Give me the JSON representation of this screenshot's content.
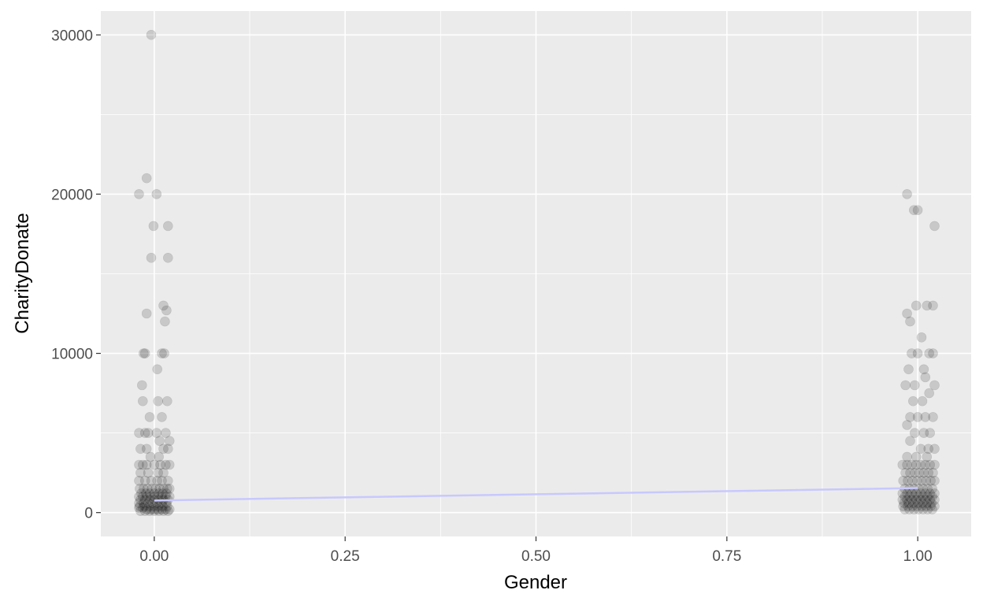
{
  "chart_data": {
    "type": "scatter",
    "xlabel": "Gender",
    "ylabel": "CharityDonate",
    "xlim": [
      -0.07,
      1.07
    ],
    "ylim": [
      -1500,
      31500
    ],
    "x_ticks": [
      0,
      0.25,
      0.5,
      0.75,
      1
    ],
    "x_tick_labels": [
      "0.00",
      "0.25",
      "0.50",
      "0.75",
      "1.00"
    ],
    "y_ticks": [
      0,
      10000,
      20000,
      30000
    ],
    "y_tick_labels": [
      "0",
      "10000",
      "20000",
      "30000"
    ],
    "grid": true,
    "legend": "none",
    "colors": {
      "panel": "#ebebeb",
      "grid_major": "#ffffff",
      "point": "#000000",
      "regression_line": "#c8c8ff"
    },
    "point_alpha": 0.15,
    "series": [
      {
        "x": [
          -0.004,
          -0.01,
          -0.02,
          0.003,
          -0.001,
          0.018,
          -0.004,
          0.018,
          0.012,
          0.016,
          -0.01,
          0.014,
          -0.014,
          -0.012,
          0.01,
          0.013,
          0.004,
          -0.016,
          -0.015,
          0.017,
          0.005,
          -0.006,
          0.01,
          -0.02,
          -0.012,
          -0.008,
          0.015,
          0.003,
          0.007,
          0.02,
          -0.018,
          -0.01,
          0.012,
          0.018,
          -0.005,
          0.006,
          -0.02,
          -0.015,
          -0.01,
          0.0,
          0.008,
          0.015,
          0.02,
          -0.018,
          -0.008,
          0.005,
          0.012,
          -0.02,
          -0.012,
          -0.004,
          0.004,
          0.01,
          0.018,
          -0.019,
          -0.014,
          -0.009,
          -0.003,
          0.002,
          0.007,
          0.012,
          0.017,
          0.02,
          -0.017,
          -0.011,
          -0.006,
          0.0,
          0.006,
          0.011,
          0.016,
          -0.02,
          -0.015,
          -0.01,
          -0.005,
          0.0,
          0.005,
          0.01,
          0.015,
          0.02,
          -0.018,
          -0.012,
          -0.006,
          0.0,
          0.006,
          0.012,
          0.018,
          -0.02,
          -0.014,
          -0.008,
          -0.002,
          0.004,
          0.01,
          0.016,
          -0.019,
          -0.013,
          -0.007,
          -0.001,
          0.005,
          0.011,
          0.017,
          -0.02,
          -0.015,
          -0.01,
          -0.005,
          0.0,
          0.005,
          0.01,
          0.015,
          0.02,
          -0.018,
          -0.012,
          -0.006,
          0.0,
          0.006,
          0.012,
          0.018
        ],
        "y": [
          30000,
          21000,
          20000,
          20000,
          18000,
          18000,
          16000,
          16000,
          13000,
          12700,
          12500,
          12000,
          10000,
          10000,
          10000,
          10000,
          9000,
          8000,
          7000,
          7000,
          7000,
          6000,
          6000,
          5000,
          5000,
          5000,
          5000,
          5000,
          4500,
          4500,
          4000,
          4000,
          4000,
          4000,
          3500,
          3500,
          3000,
          3000,
          3000,
          3000,
          3000,
          3000,
          3000,
          2500,
          2500,
          2500,
          2500,
          2000,
          2000,
          2000,
          2000,
          2000,
          2000,
          1500,
          1500,
          1500,
          1500,
          1500,
          1500,
          1500,
          1500,
          1500,
          1200,
          1200,
          1200,
          1200,
          1200,
          1200,
          1200,
          1000,
          1000,
          1000,
          1000,
          1000,
          1000,
          1000,
          1000,
          1000,
          800,
          800,
          800,
          800,
          800,
          800,
          800,
          600,
          600,
          600,
          600,
          600,
          600,
          600,
          400,
          400,
          400,
          400,
          400,
          400,
          400,
          300,
          300,
          200,
          200,
          200,
          200,
          200,
          200,
          200,
          100,
          100,
          100,
          100,
          100,
          100,
          100
        ]
      },
      {
        "x": [
          0.986,
          0.995,
          1.0,
          1.022,
          0.986,
          1.012,
          0.998,
          1.02,
          0.99,
          1.005,
          0.992,
          1.0,
          1.015,
          1.02,
          0.988,
          1.008,
          0.996,
          1.01,
          0.984,
          1.022,
          0.994,
          1.006,
          1.015,
          0.99,
          1.0,
          1.01,
          1.02,
          0.986,
          0.996,
          1.008,
          1.016,
          0.99,
          1.004,
          1.014,
          1.022,
          0.986,
          0.998,
          1.012,
          0.98,
          0.986,
          0.992,
          0.998,
          1.004,
          1.01,
          1.016,
          1.022,
          0.984,
          0.99,
          0.996,
          1.002,
          1.008,
          1.014,
          1.02,
          0.981,
          0.987,
          0.993,
          0.999,
          1.005,
          1.011,
          1.017,
          1.022,
          0.983,
          0.989,
          0.995,
          1.001,
          1.007,
          1.013,
          1.019,
          0.98,
          0.986,
          0.992,
          0.998,
          1.004,
          1.01,
          1.016,
          1.022,
          0.983,
          0.989,
          0.995,
          1.001,
          1.007,
          1.013,
          1.019,
          0.98,
          0.986,
          0.992,
          0.998,
          1.004,
          1.01,
          1.016,
          1.022,
          0.982,
          0.988,
          0.994,
          1.0,
          1.006,
          1.012,
          1.018,
          0.981,
          0.987,
          0.993,
          0.999,
          1.005,
          1.011,
          1.017,
          1.022,
          0.983,
          0.989,
          0.995,
          1.001,
          1.007,
          1.013,
          1.019
        ],
        "y": [
          20000,
          19000,
          19000,
          18000,
          12500,
          13000,
          13000,
          13000,
          12000,
          11000,
          10000,
          10000,
          10000,
          10000,
          9000,
          9000,
          8000,
          8500,
          8000,
          8000,
          7000,
          7000,
          7500,
          6000,
          6000,
          6000,
          6000,
          5500,
          5000,
          5000,
          5000,
          4500,
          4000,
          4000,
          4000,
          3500,
          3500,
          3500,
          3000,
          3000,
          3000,
          3000,
          3000,
          3000,
          3000,
          3000,
          2500,
          2500,
          2500,
          2500,
          2500,
          2500,
          2500,
          2000,
          2000,
          2000,
          2000,
          2000,
          2000,
          2000,
          2000,
          1500,
          1500,
          1500,
          1500,
          1500,
          1500,
          1500,
          1200,
          1200,
          1200,
          1200,
          1200,
          1200,
          1200,
          1200,
          1000,
          1000,
          1000,
          1000,
          1000,
          1000,
          1000,
          800,
          800,
          800,
          800,
          800,
          800,
          800,
          800,
          600,
          600,
          600,
          600,
          600,
          600,
          600,
          400,
          400,
          400,
          400,
          400,
          400,
          400,
          400,
          200,
          200,
          200,
          200,
          200,
          200,
          200
        ]
      }
    ],
    "regression_line": {
      "x": [
        0,
        1
      ],
      "y": [
        760,
        1540
      ]
    }
  }
}
